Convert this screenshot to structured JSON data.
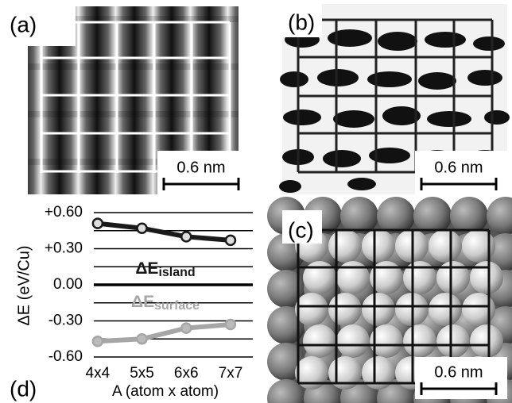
{
  "panels": {
    "a": {
      "label": "(a)",
      "scale_bar": "0.6 nm"
    },
    "b": {
      "label": "(b)",
      "scale_bar": "0.6 nm"
    },
    "c": {
      "label": "(c)",
      "scale_bar": "0.6 nm"
    },
    "d": {
      "label": "(d)"
    }
  },
  "chart_data": {
    "type": "line",
    "y_label": "ΔE (eV/Cu)",
    "x_label": "A (atom x atom)",
    "categories": [
      "4x4",
      "5x5",
      "6x6",
      "7x7"
    ],
    "ylim": [
      -0.6,
      0.6
    ],
    "yticks": [
      {
        "value": 0.6,
        "label": "+0.60"
      },
      {
        "value": 0.3,
        "label": "+0.30"
      },
      {
        "value": 0,
        "label": "0.00"
      },
      {
        "value": -0.3,
        "label": "-0.30"
      },
      {
        "value": -0.6,
        "label": "-0.60"
      }
    ],
    "minor_yticks": [
      0.45,
      0.15,
      -0.15,
      -0.45
    ],
    "grid": true,
    "series": [
      {
        "name": "ΔE",
        "subscript": "island",
        "color": "#1a1a1a",
        "values": [
          0.51,
          0.47,
          0.4,
          0.37
        ]
      },
      {
        "name": "ΔE",
        "subscript": "surface",
        "color": "#a6a6a6",
        "values": [
          -0.47,
          -0.45,
          -0.36,
          -0.33
        ]
      }
    ]
  }
}
